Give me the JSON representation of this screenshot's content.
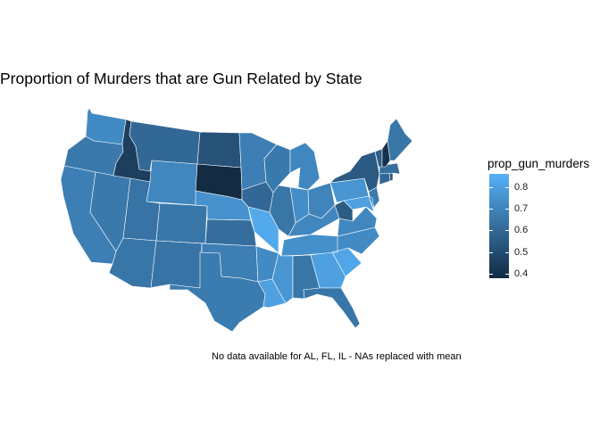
{
  "title": "Proportion of Murders that are Gun Related by State",
  "caption": "No data available for AL, FL, IL - NAs replaced with mean",
  "legend": {
    "title": "prop_gun_murders",
    "ticks": [
      0.8,
      0.7,
      0.6,
      0.5,
      0.4
    ],
    "range": [
      0.38,
      0.86
    ],
    "colors": {
      "low": "#132b43",
      "high": "#56b1f7"
    }
  },
  "chart_data": {
    "type": "choropleth",
    "value_field": "prop_gun_murders",
    "states": [
      {
        "state": "WA",
        "value": 0.72
      },
      {
        "state": "OR",
        "value": 0.66
      },
      {
        "state": "CA",
        "value": 0.68
      },
      {
        "state": "NV",
        "value": 0.66
      },
      {
        "state": "ID",
        "value": 0.45
      },
      {
        "state": "MT",
        "value": 0.6
      },
      {
        "state": "WY",
        "value": 0.71
      },
      {
        "state": "UT",
        "value": 0.64
      },
      {
        "state": "AZ",
        "value": 0.65
      },
      {
        "state": "CO",
        "value": 0.65
      },
      {
        "state": "NM",
        "value": 0.64
      },
      {
        "state": "ND",
        "value": 0.52
      },
      {
        "state": "SD",
        "value": 0.38
      },
      {
        "state": "NE",
        "value": 0.75
      },
      {
        "state": "KS",
        "value": 0.62
      },
      {
        "state": "OK",
        "value": 0.68
      },
      {
        "state": "TX",
        "value": 0.67
      },
      {
        "state": "MN",
        "value": 0.68
      },
      {
        "state": "IA",
        "value": 0.6
      },
      {
        "state": "MO",
        "value": 0.83
      },
      {
        "state": "AR",
        "value": 0.72
      },
      {
        "state": "LA",
        "value": 0.8
      },
      {
        "state": "WI",
        "value": 0.66
      },
      {
        "state": "IL",
        "value": 0.65
      },
      {
        "state": "MI",
        "value": 0.71
      },
      {
        "state": "IN",
        "value": 0.73
      },
      {
        "state": "OH",
        "value": 0.7
      },
      {
        "state": "KY",
        "value": 0.71
      },
      {
        "state": "TN",
        "value": 0.74
      },
      {
        "state": "MS",
        "value": 0.76
      },
      {
        "state": "AL",
        "value": 0.65
      },
      {
        "state": "GA",
        "value": 0.8
      },
      {
        "state": "FL",
        "value": 0.65
      },
      {
        "state": "SC",
        "value": 0.82
      },
      {
        "state": "NC",
        "value": 0.72
      },
      {
        "state": "VA",
        "value": 0.71
      },
      {
        "state": "WV",
        "value": 0.56
      },
      {
        "state": "PA",
        "value": 0.76
      },
      {
        "state": "NY",
        "value": 0.55
      },
      {
        "state": "NJ",
        "value": 0.67
      },
      {
        "state": "MD",
        "value": 0.8
      },
      {
        "state": "DE",
        "value": 0.7
      },
      {
        "state": "CT",
        "value": 0.6
      },
      {
        "state": "RI",
        "value": 0.55
      },
      {
        "state": "MA",
        "value": 0.62
      },
      {
        "state": "VT",
        "value": 0.57
      },
      {
        "state": "NH",
        "value": 0.4
      },
      {
        "state": "ME",
        "value": 0.65
      }
    ]
  }
}
